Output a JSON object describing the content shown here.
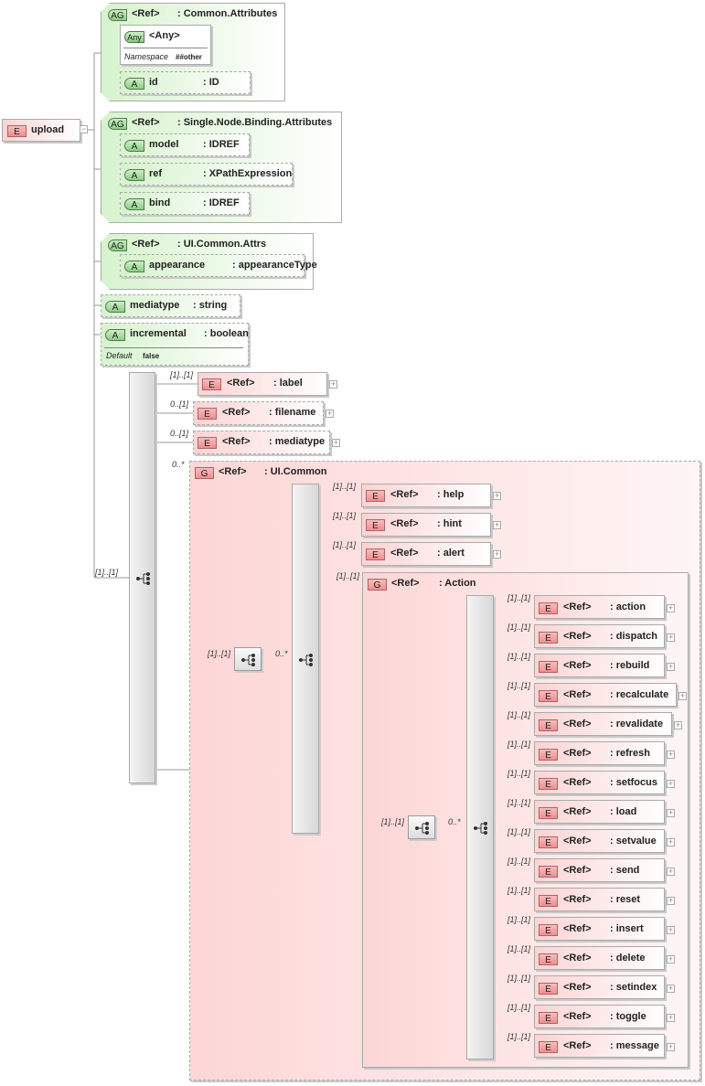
{
  "root": {
    "badge": "E",
    "name": "upload",
    "toggle": "−"
  },
  "common_attributes": {
    "badge": "AG",
    "ref": "<Ref>",
    "name": ": Common.Attributes",
    "any": {
      "badge": "Any",
      "name": "<Any>",
      "namespace_label": "Namespace",
      "namespace_value": "##other"
    },
    "id": {
      "badge": "A",
      "name": "id",
      "type": ": ID"
    }
  },
  "single_node_binding": {
    "badge": "AG",
    "ref": "<Ref>",
    "name": ": Single.Node.Binding.Attributes",
    "attributes": [
      {
        "badge": "A",
        "name": "model",
        "type": ": IDREF"
      },
      {
        "badge": "A",
        "name": "ref",
        "type": ": XPathExpression"
      },
      {
        "badge": "A",
        "name": "bind",
        "type": ": IDREF"
      }
    ]
  },
  "ui_common_attrs": {
    "badge": "AG",
    "ref": "<Ref>",
    "name": ": UI.Common.Attrs",
    "appearance": {
      "badge": "A",
      "name": "appearance",
      "type": ": appearanceType"
    }
  },
  "mediatype_attr": {
    "badge": "A",
    "name": "mediatype",
    "type": ": string"
  },
  "incremental_attr": {
    "badge": "A",
    "name": "incremental",
    "type": ": boolean",
    "default_label": "Default",
    "default_value": "false"
  },
  "sequence": {
    "cardinality": "[1]..[1]"
  },
  "children": [
    {
      "badge": "E",
      "ref": "<Ref>",
      "name": ": label",
      "cardinality": "[1]..[1]"
    },
    {
      "badge": "E",
      "ref": "<Ref>",
      "name": ": filename",
      "cardinality": "0..[1]"
    },
    {
      "badge": "E",
      "ref": "<Ref>",
      "name": ": mediatype",
      "cardinality": "0..[1]"
    }
  ],
  "ui_common": {
    "badge": "G",
    "ref": "<Ref>",
    "name": ": UI.Common",
    "cardinality": "0..*",
    "sequence_cardinality": "[1]..[1]",
    "choice_cardinality": "0..*",
    "items": [
      {
        "badge": "E",
        "ref": "<Ref>",
        "name": ": help",
        "cardinality": "[1]..[1]"
      },
      {
        "badge": "E",
        "ref": "<Ref>",
        "name": ": hint",
        "cardinality": "[1]..[1]"
      },
      {
        "badge": "E",
        "ref": "<Ref>",
        "name": ": alert",
        "cardinality": "[1]..[1]"
      }
    ],
    "action": {
      "badge": "G",
      "ref": "<Ref>",
      "name": ": Action",
      "cardinality": "[1]..[1]",
      "sequence_cardinality": "[1]..[1]",
      "choice_cardinality": "0..*",
      "items": [
        {
          "ref": "<Ref>",
          "name": ": action",
          "cardinality": "[1]..[1]"
        },
        {
          "ref": "<Ref>",
          "name": ": dispatch",
          "cardinality": "[1]..[1]"
        },
        {
          "ref": "<Ref>",
          "name": ": rebuild",
          "cardinality": "[1]..[1]"
        },
        {
          "ref": "<Ref>",
          "name": ": recalculate",
          "cardinality": "[1]..[1]"
        },
        {
          "ref": "<Ref>",
          "name": ": revalidate",
          "cardinality": "[1]..[1]"
        },
        {
          "ref": "<Ref>",
          "name": ": refresh",
          "cardinality": "[1]..[1]"
        },
        {
          "ref": "<Ref>",
          "name": ": setfocus",
          "cardinality": "[1]..[1]"
        },
        {
          "ref": "<Ref>",
          "name": ": load",
          "cardinality": "[1]..[1]"
        },
        {
          "ref": "<Ref>",
          "name": ": setvalue",
          "cardinality": "[1]..[1]"
        },
        {
          "ref": "<Ref>",
          "name": ": send",
          "cardinality": "[1]..[1]"
        },
        {
          "ref": "<Ref>",
          "name": ": reset",
          "cardinality": "[1]..[1]"
        },
        {
          "ref": "<Ref>",
          "name": ": insert",
          "cardinality": "[1]..[1]"
        },
        {
          "ref": "<Ref>",
          "name": ": delete",
          "cardinality": "[1]..[1]"
        },
        {
          "ref": "<Ref>",
          "name": ": setindex",
          "cardinality": "[1]..[1]"
        },
        {
          "ref": "<Ref>",
          "name": ": toggle",
          "cardinality": "[1]..[1]"
        },
        {
          "ref": "<Ref>",
          "name": ": message",
          "cardinality": "[1]..[1]"
        }
      ],
      "item_badge": "E",
      "expand": "+"
    }
  },
  "colors": {
    "element": "#fbd3d3",
    "attribute": "#d6f3cd",
    "badge_element": "#ef8e8e",
    "badge_attribute": "#8ccf86"
  }
}
